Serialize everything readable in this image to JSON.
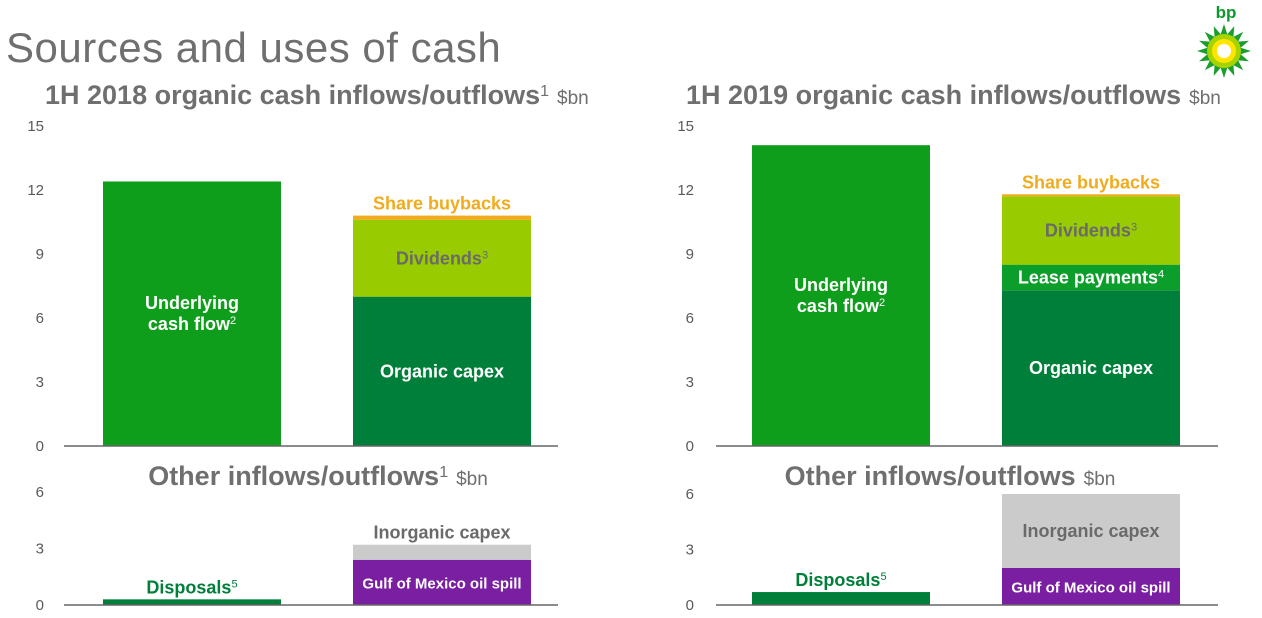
{
  "page_title": "Sources and uses of cash",
  "logo": {
    "text": "bp"
  },
  "colors": {
    "underlying": "#0f9e1c",
    "organic_capex": "#007f3b",
    "lease": "#0b9e2a",
    "dividends": "#99cc00",
    "buybacks": "#f0ac1e",
    "disposals": "#007f3b",
    "gom": "#7a1fa2",
    "inorganic": "#cbcbcb",
    "axis": "#595959",
    "heading": "#6f6f6f"
  },
  "chart_data": [
    {
      "type": "bar",
      "stacked": true,
      "title": "1H 2018 organic cash inflows/outflows",
      "title_sup": "1",
      "unit": "$bn",
      "ylim": [
        0,
        15
      ],
      "yticks": [
        "0",
        "3",
        "6",
        "9",
        "12",
        "15"
      ],
      "grid": false,
      "bars": [
        {
          "segments": [
            {
              "label": "Underlying cash flow",
              "label_lines": [
                "Underlying",
                "cash flow"
              ],
              "sup": "2",
              "value": 12.4,
              "color_key": "underlying",
              "text_color": "#ffffff"
            }
          ]
        },
        {
          "segments": [
            {
              "label": "Organic capex",
              "label_lines": [
                "Organic capex"
              ],
              "sup": "",
              "value": 7.0,
              "color_key": "organic_capex",
              "text_color": "#ffffff"
            },
            {
              "label": "Dividends",
              "label_lines": [
                "Dividends"
              ],
              "sup": "3",
              "value": 3.6,
              "color_key": "dividends",
              "text_color": "#6a6a6a"
            },
            {
              "label": "Share buybacks",
              "label_lines": [
                "Share buybacks"
              ],
              "sup": "",
              "value": 0.2,
              "color_key": "buybacks",
              "text_color": "#f0ac1e",
              "label_above": true
            }
          ]
        }
      ]
    },
    {
      "type": "bar",
      "stacked": true,
      "title": "Other inflows/outflows",
      "title_sup": "1",
      "unit": "$bn",
      "ylim": [
        0,
        6
      ],
      "yticks": [
        "0",
        "3",
        "6"
      ],
      "grid": false,
      "bars": [
        {
          "segments": [
            {
              "label": "Disposals",
              "label_lines": [
                "Disposals"
              ],
              "sup": "5",
              "value": 0.3,
              "color_key": "disposals",
              "text_color": "#007f3b",
              "label_above": true
            }
          ]
        },
        {
          "segments": [
            {
              "label": "Gulf of Mexico oil spill",
              "label_lines": [
                "Gulf of Mexico oil spill"
              ],
              "sup": "",
              "value": 2.4,
              "color_key": "gom",
              "text_color": "#ffffff"
            },
            {
              "label": "Inorganic capex",
              "label_lines": [
                "Inorganic capex"
              ],
              "sup": "",
              "value": 0.8,
              "color_key": "inorganic",
              "text_color": "#6a6a6a",
              "label_above": true
            }
          ]
        }
      ]
    },
    {
      "type": "bar",
      "stacked": true,
      "title": "1H 2019 organic cash inflows/outflows",
      "title_sup": "",
      "unit": "$bn",
      "ylim": [
        0,
        15
      ],
      "yticks": [
        "0",
        "3",
        "6",
        "9",
        "12",
        "15"
      ],
      "grid": false,
      "bars": [
        {
          "segments": [
            {
              "label": "Underlying cash flow",
              "label_lines": [
                "Underlying",
                "cash flow"
              ],
              "sup": "2",
              "value": 14.1,
              "color_key": "underlying",
              "text_color": "#ffffff"
            }
          ]
        },
        {
          "segments": [
            {
              "label": "Organic capex",
              "label_lines": [
                "Organic capex"
              ],
              "sup": "",
              "value": 7.3,
              "color_key": "organic_capex",
              "text_color": "#ffffff"
            },
            {
              "label": "Lease payments",
              "label_lines": [
                "Lease payments"
              ],
              "sup": "4",
              "value": 1.2,
              "color_key": "lease",
              "text_color": "#ffffff"
            },
            {
              "label": "Dividends",
              "label_lines": [
                "Dividends"
              ],
              "sup": "3",
              "value": 3.2,
              "color_key": "dividends",
              "text_color": "#6a6a6a"
            },
            {
              "label": "Share buybacks",
              "label_lines": [
                "Share buybacks"
              ],
              "sup": "",
              "value": 0.1,
              "color_key": "buybacks",
              "text_color": "#f0ac1e",
              "label_above": true
            }
          ]
        }
      ]
    },
    {
      "type": "bar",
      "stacked": true,
      "title": "Other inflows/outflows",
      "title_sup": "",
      "unit": "$bn",
      "ylim": [
        0,
        6
      ],
      "yticks": [
        "0",
        "3",
        "6"
      ],
      "grid": false,
      "bars": [
        {
          "segments": [
            {
              "label": "Disposals",
              "label_lines": [
                "Disposals"
              ],
              "sup": "5",
              "value": 0.7,
              "color_key": "disposals",
              "text_color": "#007f3b",
              "label_above": true
            }
          ]
        },
        {
          "segments": [
            {
              "label": "Gulf of Mexico oil spill",
              "label_lines": [
                "Gulf of Mexico oil spill"
              ],
              "sup": "",
              "value": 2.0,
              "color_key": "gom",
              "text_color": "#ffffff"
            },
            {
              "label": "Inorganic capex",
              "label_lines": [
                "Inorganic capex"
              ],
              "sup": "",
              "value": 4.0,
              "color_key": "inorganic",
              "text_color": "#6a6a6a"
            }
          ]
        }
      ]
    }
  ]
}
